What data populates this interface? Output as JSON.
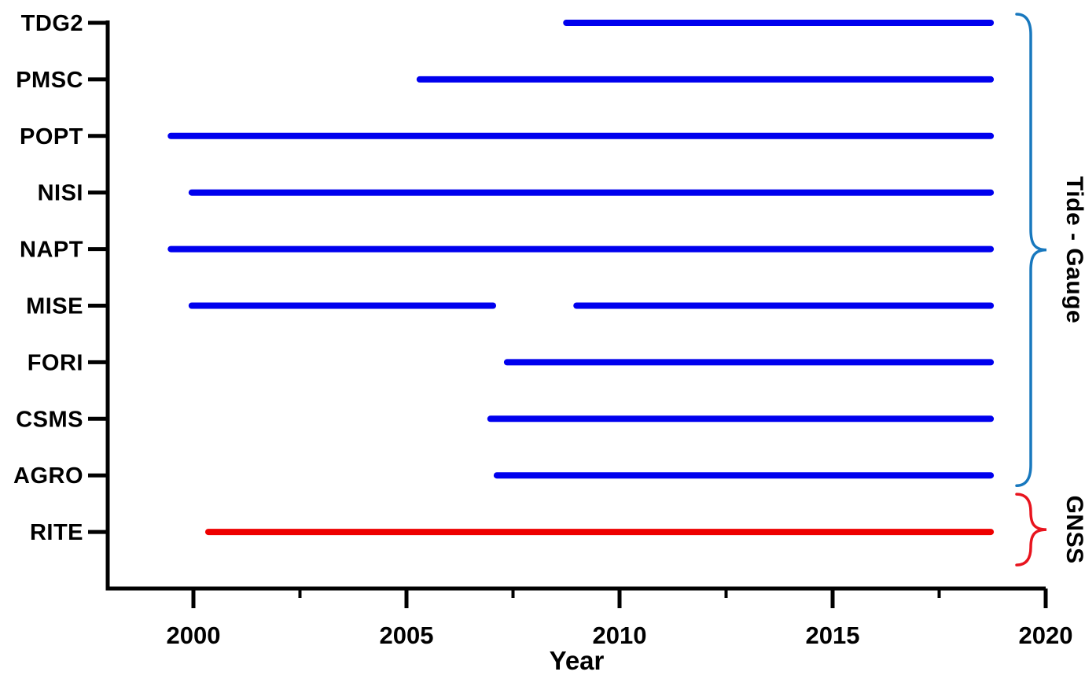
{
  "chart_data": {
    "type": "gantt",
    "title": "",
    "xlabel": "Year",
    "ylabel": "",
    "xlim": [
      1998,
      2020
    ],
    "grid": false,
    "x_major_ticks": [
      2000,
      2005,
      2010,
      2015,
      2020
    ],
    "x_minor_ticks": [
      2002.5,
      2007.5,
      2012.5,
      2017.5
    ],
    "colors": {
      "tide_gauge_line": "#0000EE",
      "gnss_line": "#EE0000",
      "tide_gauge_brace": "#1878BE",
      "gnss_brace": "#E8141E",
      "axis": "#000000"
    },
    "rows": [
      {
        "label": "TDG2",
        "group": "tide-gauge",
        "color": "#0000EE",
        "segments": [
          [
            2008.75,
            2018.71
          ]
        ]
      },
      {
        "label": "PMSC",
        "group": "tide-gauge",
        "color": "#0000EE",
        "segments": [
          [
            2005.31,
            2018.71
          ]
        ]
      },
      {
        "label": "POPT",
        "group": "tide-gauge",
        "color": "#0000EE",
        "segments": [
          [
            1999.47,
            2018.71
          ]
        ]
      },
      {
        "label": "NISI",
        "group": "tide-gauge",
        "color": "#0000EE",
        "segments": [
          [
            1999.96,
            2018.71
          ]
        ]
      },
      {
        "label": "NAPT",
        "group": "tide-gauge",
        "color": "#0000EE",
        "segments": [
          [
            1999.47,
            2018.71
          ]
        ]
      },
      {
        "label": "MISE",
        "group": "tide-gauge",
        "color": "#0000EE",
        "segments": [
          [
            1999.96,
            2007.03
          ],
          [
            2008.99,
            2018.71
          ]
        ]
      },
      {
        "label": "FORI",
        "group": "tide-gauge",
        "color": "#0000EE",
        "segments": [
          [
            2007.36,
            2018.71
          ]
        ]
      },
      {
        "label": "CSMS",
        "group": "tide-gauge",
        "color": "#0000EE",
        "segments": [
          [
            2006.97,
            2018.71
          ]
        ]
      },
      {
        "label": "AGRO",
        "group": "tide-gauge",
        "color": "#0000EE",
        "segments": [
          [
            2007.12,
            2018.71
          ]
        ]
      },
      {
        "label": "RITE",
        "group": "gnss",
        "color": "#EE0000",
        "segments": [
          [
            2000.35,
            2018.71
          ]
        ]
      }
    ],
    "groups": [
      {
        "label": "Tide - Gauge",
        "brace_color": "#1878BE",
        "row_span": [
          0,
          8
        ]
      },
      {
        "label": "GNSS",
        "brace_color": "#E8141E",
        "row_span": [
          9,
          9
        ]
      }
    ]
  }
}
